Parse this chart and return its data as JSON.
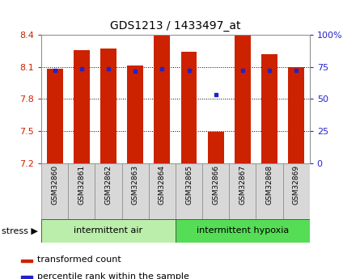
{
  "title": "GDS1213 / 1433497_at",
  "samples": [
    "GSM32860",
    "GSM32861",
    "GSM32862",
    "GSM32863",
    "GSM32864",
    "GSM32865",
    "GSM32866",
    "GSM32867",
    "GSM32868",
    "GSM32869"
  ],
  "bar_heights": [
    8.08,
    8.26,
    8.27,
    8.11,
    8.39,
    8.24,
    7.49,
    8.41,
    8.22,
    8.1
  ],
  "blue_dot_values": [
    8.07,
    8.08,
    8.08,
    8.06,
    8.08,
    8.07,
    7.84,
    8.07,
    8.07,
    8.07
  ],
  "y_min": 7.2,
  "y_max": 8.4,
  "y_ticks_left": [
    7.2,
    7.5,
    7.8,
    8.1,
    8.4
  ],
  "right_y_ticks_pct": [
    0,
    25,
    50,
    75,
    100
  ],
  "right_y_tick_labels": [
    "0",
    "25",
    "50",
    "75",
    "100%"
  ],
  "bar_color": "#cc2200",
  "dot_color": "#2222cc",
  "group1_label": "intermittent air",
  "group2_label": "intermittent hypoxia",
  "group1_color": "#bbeeaa",
  "group2_color": "#55dd55",
  "stress_label": "stress",
  "legend_bar_label": "transformed count",
  "legend_dot_label": "percentile rank within the sample",
  "bar_width": 0.6,
  "tick_label_color_left": "#cc2200",
  "tick_label_color_right": "#2222cc",
  "group1_indices": [
    0,
    1,
    2,
    3,
    4
  ],
  "group2_indices": [
    5,
    6,
    7,
    8,
    9
  ],
  "gridlines": [
    7.5,
    7.8,
    8.1
  ]
}
